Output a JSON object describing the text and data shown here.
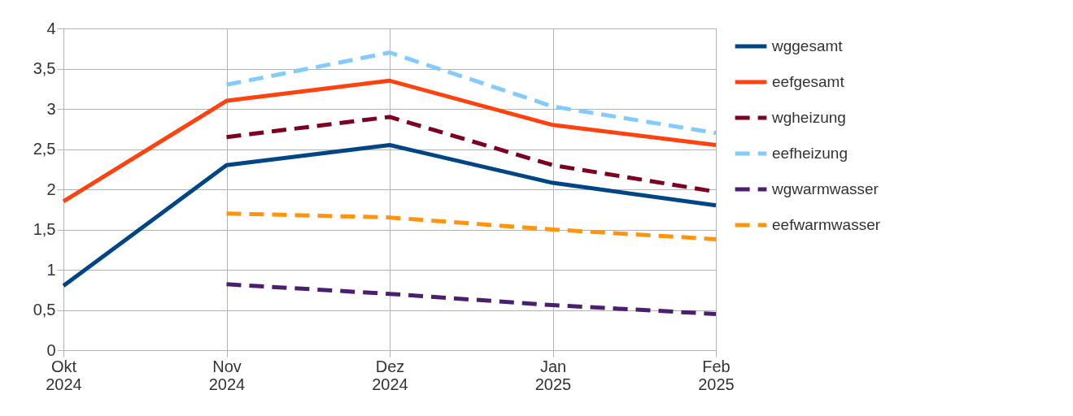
{
  "chart_data": {
    "type": "line",
    "categories": [
      "Okt 2024",
      "Nov 2024",
      "Dez 2024",
      "Jan 2025",
      "Feb 2025"
    ],
    "ylim": [
      0,
      4
    ],
    "yticks": [
      0,
      {
        "value": 0.5,
        "label": "0,5"
      },
      1,
      {
        "value": 1.5,
        "label": "1,5"
      },
      2,
      {
        "value": 2.5,
        "label": "2,5"
      },
      3,
      {
        "value": 3.5,
        "label": "3,5"
      },
      4
    ],
    "grid": true,
    "legend": "right",
    "marker": "none",
    "series": [
      {
        "name": "wggesamt",
        "color": "#004586",
        "line_style": "solid",
        "values": [
          0.8,
          2.3,
          2.55,
          2.08,
          1.8
        ]
      },
      {
        "name": "eefgesamt",
        "color": "#ff420e",
        "line_style": "solid",
        "values": [
          1.85,
          3.1,
          3.35,
          2.8,
          2.55
        ]
      },
      {
        "name": "wgheizung",
        "color": "#7e0021",
        "line_style": "dashed",
        "values": [
          null,
          2.65,
          2.9,
          2.3,
          1.97
        ]
      },
      {
        "name": "eefheizung",
        "color": "#83caff",
        "line_style": "dashed",
        "values": [
          null,
          3.3,
          3.7,
          3.03,
          2.7
        ]
      },
      {
        "name": "wgwarmwasser",
        "color": "#4b1f6f",
        "line_style": "dashed",
        "values": [
          null,
          0.82,
          0.7,
          0.56,
          0.45
        ]
      },
      {
        "name": "eefwarmwasser",
        "color": "#ff950e",
        "line_style": "dashed",
        "values": [
          null,
          1.7,
          1.65,
          1.5,
          1.38
        ]
      }
    ]
  }
}
